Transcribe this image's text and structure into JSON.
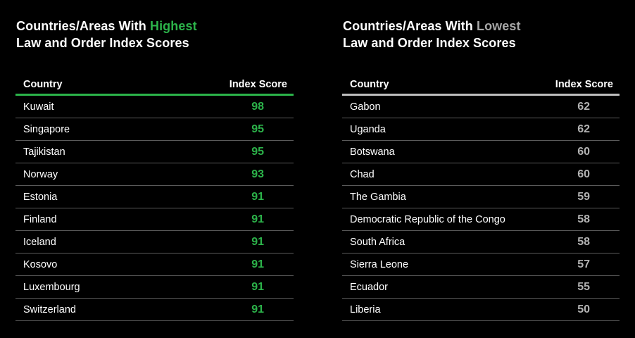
{
  "chart_data": [
    {
      "type": "table",
      "title": {
        "prefix": "Countries/Areas With ",
        "highlight": "Highest",
        "line2": "Law and Order Index Scores"
      },
      "columns": [
        "Country",
        "Index Score"
      ],
      "rows": [
        {
          "country": "Kuwait",
          "score": 98
        },
        {
          "country": "Singapore",
          "score": 95
        },
        {
          "country": "Tajikistan",
          "score": 95
        },
        {
          "country": "Norway",
          "score": 93
        },
        {
          "country": "Estonia",
          "score": 91
        },
        {
          "country": "Finland",
          "score": 91
        },
        {
          "country": "Iceland",
          "score": 91
        },
        {
          "country": "Kosovo",
          "score": 91
        },
        {
          "country": "Luxembourg",
          "score": 91
        },
        {
          "country": "Switzerland",
          "score": 91
        }
      ],
      "accent_color": "#2cb34a"
    },
    {
      "type": "table",
      "title": {
        "prefix": "Countries/Areas With ",
        "highlight": "Lowest",
        "line2": "Law and Order Index Scores"
      },
      "columns": [
        "Country",
        "Index Score"
      ],
      "rows": [
        {
          "country": "Gabon",
          "score": 62
        },
        {
          "country": "Uganda",
          "score": 62
        },
        {
          "country": "Botswana",
          "score": 60
        },
        {
          "country": "Chad",
          "score": 60
        },
        {
          "country": "The Gambia",
          "score": 59
        },
        {
          "country": "Democratic Republic of the Congo",
          "score": 58
        },
        {
          "country": "South Africa",
          "score": 58
        },
        {
          "country": "Sierra Leone",
          "score": 57
        },
        {
          "country": "Ecuador",
          "score": 55
        },
        {
          "country": "Liberia",
          "score": 50
        }
      ],
      "accent_color": "#a6a6a6"
    }
  ]
}
